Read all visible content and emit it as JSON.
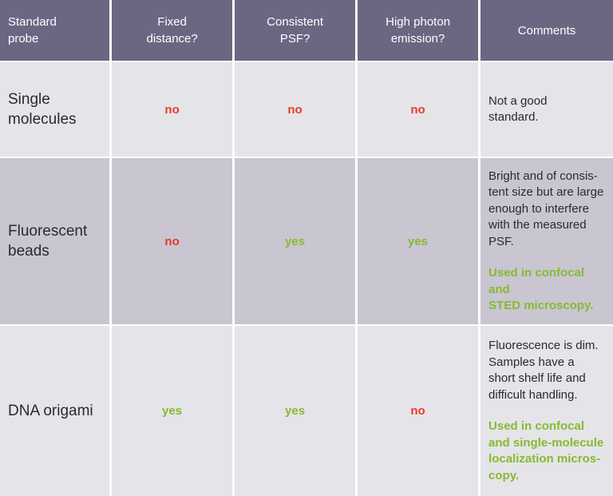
{
  "header": {
    "col0": "Standard\nprobe",
    "col1": "Fixed\ndistance?",
    "col2": "Consistent\nPSF?",
    "col3": "High photon\nemission?",
    "col4": "Comments"
  },
  "rows": [
    {
      "probe": "Single\nmolecules",
      "fixed_distance": "no",
      "consistent_psf": "no",
      "high_photon_emission": "no",
      "comment": "Not a good\nstandard.",
      "note": ""
    },
    {
      "probe": "Fluorescent\nbeads",
      "fixed_distance": "no",
      "consistent_psf": "yes",
      "high_photon_emission": "yes",
      "comment": "Bright and of consis-\ntent size but are large\nenough to interfere\nwith the measured\nPSF.",
      "note": "Used in confocal and\nSTED microscopy."
    },
    {
      "probe": "DNA origami",
      "fixed_distance": "yes",
      "consistent_psf": "yes",
      "high_photon_emission": "no",
      "comment": "Fluorescence is dim.\nSamples have a\nshort shelf life and\ndifficult handling.",
      "note": "Used in confocal\nand single-molecule\nlocalization micros-\ncopy."
    }
  ],
  "colors": {
    "header_bg": "#6b6682",
    "row_light": "#e5e4e9",
    "row_dark": "#c9c6d2",
    "no": "#e53a2a",
    "yes": "#86bb2e"
  }
}
